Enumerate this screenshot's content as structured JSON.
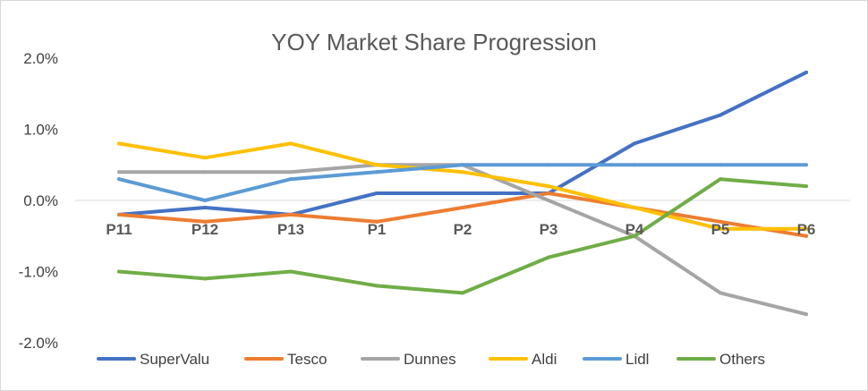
{
  "chart_data": {
    "type": "line",
    "title": "YOY Market Share Progression",
    "xlabel": "",
    "ylabel": "",
    "categories": [
      "P11",
      "P12",
      "P13",
      "P1",
      "P2",
      "P3",
      "P4",
      "P5",
      "P6"
    ],
    "ylim": [
      -2.0,
      2.0
    ],
    "yticks": [
      {
        "value": 2.0,
        "label": "2.0%"
      },
      {
        "value": 1.0,
        "label": "1.0%"
      },
      {
        "value": 0.0,
        "label": "0.0%"
      },
      {
        "value": -1.0,
        "label": "-1.0%"
      },
      {
        "value": -2.0,
        "label": "-2.0%"
      }
    ],
    "grid": false,
    "legend_position": "bottom",
    "series": [
      {
        "name": "SuperValu",
        "color": "#4472C4",
        "values": [
          -0.2,
          -0.1,
          -0.2,
          0.1,
          0.1,
          0.1,
          0.8,
          1.2,
          1.8
        ]
      },
      {
        "name": "Tesco",
        "color": "#ED7D31",
        "values": [
          -0.2,
          -0.3,
          -0.2,
          -0.3,
          -0.1,
          0.1,
          -0.1,
          -0.3,
          -0.5
        ]
      },
      {
        "name": "Dunnes",
        "color": "#A5A5A5",
        "values": [
          0.4,
          0.4,
          0.4,
          0.5,
          0.5,
          0.0,
          -0.5,
          -1.3,
          -1.6
        ]
      },
      {
        "name": "Aldi",
        "color": "#FFC000",
        "values": [
          0.8,
          0.6,
          0.8,
          0.5,
          0.4,
          0.2,
          -0.1,
          -0.4,
          -0.4
        ]
      },
      {
        "name": "Lidl",
        "color": "#5B9BD5",
        "values": [
          0.3,
          0.0,
          0.3,
          0.4,
          0.5,
          0.5,
          0.5,
          0.5,
          0.5
        ]
      },
      {
        "name": "Others",
        "color": "#70AD47",
        "values": [
          -1.0,
          -1.1,
          -1.0,
          -1.2,
          -1.3,
          -0.8,
          -0.5,
          0.3,
          0.2
        ]
      }
    ]
  }
}
